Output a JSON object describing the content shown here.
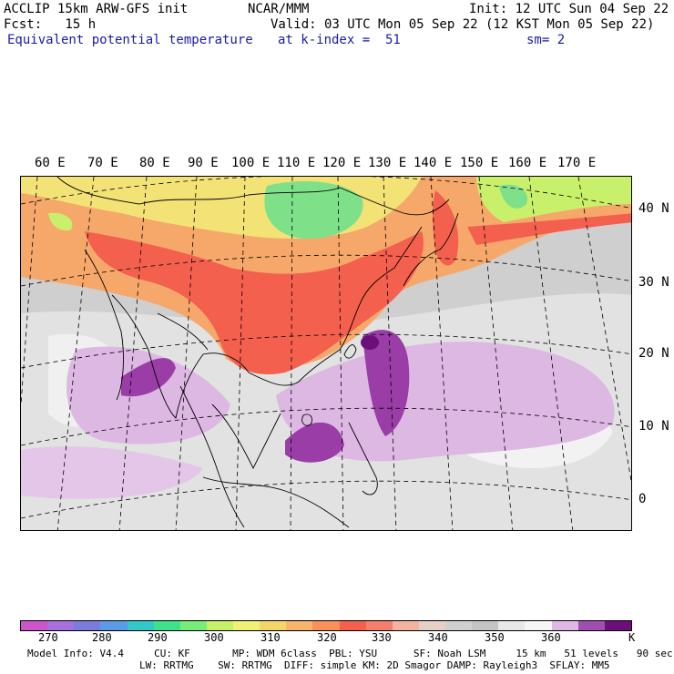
{
  "header": {
    "left_line1": "ACCLIP 15km ARW-GFS init",
    "left_line2": "Fcst:   15 h",
    "left_line3": "Equivalent potential temperature",
    "center_line1": "NCAR/MMM",
    "center_line2": "Valid: 03 UTC Mon 05 Sep 22 (12 KST Mon 05 Sep 22)",
    "center_line3": "at k-index =  51",
    "right_line1": "Init: 12 UTC Sun 04 Sep 22",
    "right_line3": "sm= 2"
  },
  "map": {
    "lon_labels": [
      "60 E",
      "70 E",
      "80 E",
      "90 E",
      "100 E",
      "110 E",
      "120 E",
      "130 E",
      "140 E",
      "150 E",
      "160 E",
      "170 E"
    ],
    "lat_labels": [
      "40 N",
      "30 N",
      "20 N",
      "10 N",
      "0"
    ],
    "colors": {
      "background": "#cfcfcf",
      "green": "#7fe08a",
      "yellow_green": "#c9f06a",
      "yellow": "#f3e276",
      "orange": "#f6a86a",
      "red": "#f4604e",
      "light_gray": "#e6e6e6",
      "white": "#f4f4f4",
      "lavender": "#ddb8e3",
      "purple": "#9a3da6",
      "dark_purple": "#6d0f78"
    }
  },
  "colorbar": {
    "colors": [
      "#cc55cc",
      "#a770dd",
      "#7b7bdd",
      "#5b9be6",
      "#32c8c8",
      "#3fe28c",
      "#76ec7a",
      "#c6f06a",
      "#f0ef78",
      "#f3d56a",
      "#f6b56a",
      "#f7905a",
      "#f4604e",
      "#f47f6c",
      "#f4b2a0",
      "#e6cfc4",
      "#cfcfcf",
      "#c4c4c4",
      "#e8e8e8",
      "#f6f6f6",
      "#ddb8e3",
      "#a04fb0",
      "#6d0f78"
    ],
    "labels": [
      "270",
      "280",
      "290",
      "300",
      "310",
      "320",
      "330",
      "340",
      "350",
      "360",
      "K"
    ]
  },
  "footer": {
    "line1": "Model Info: V4.4     CU: KF       MP: WDM 6class  PBL: YSU      SF: Noah LSM     15 km   51 levels   90 sec",
    "line2": "LW: RRTMG    SW: RRTMG  DIFF: simple KM: 2D Smagor DAMP: Rayleigh3  SFLAY: MM5"
  }
}
